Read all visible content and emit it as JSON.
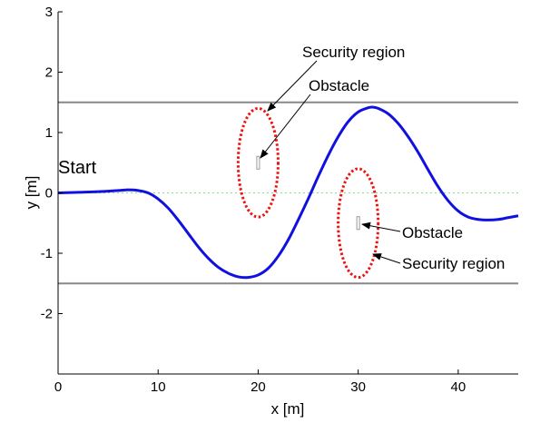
{
  "chart_data": {
    "type": "line",
    "xlabel": "x [m]",
    "ylabel": "y [m]",
    "xlim": [
      0,
      46
    ],
    "ylim": [
      -3,
      3
    ],
    "xticks": [
      0,
      10,
      20,
      30,
      40
    ],
    "yticks": [
      -2,
      -1,
      0,
      1,
      2,
      3
    ],
    "grid": false,
    "colors": {
      "trajectory": "#1010e0",
      "boundary": "#888888",
      "centerline": "#88dd88",
      "security_region": "#ee1111",
      "obstacle": "#999999"
    },
    "series": [
      {
        "x": [
          0,
          2,
          4,
          6,
          7,
          8,
          9,
          10,
          11,
          12,
          13,
          14,
          15,
          16,
          17,
          18,
          19,
          20,
          21,
          22,
          23,
          24,
          25,
          26,
          27,
          28,
          29,
          30,
          31,
          31.5,
          32,
          33,
          34,
          35,
          36,
          37,
          38,
          39,
          40,
          41,
          42,
          43,
          44,
          45,
          46
        ],
        "y": [
          0,
          0.01,
          0.02,
          0.04,
          0.05,
          0.04,
          0.0,
          -0.1,
          -0.25,
          -0.45,
          -0.67,
          -0.89,
          -1.08,
          -1.23,
          -1.33,
          -1.39,
          -1.4,
          -1.36,
          -1.25,
          -1.05,
          -0.78,
          -0.45,
          -0.1,
          0.27,
          0.62,
          0.93,
          1.18,
          1.34,
          1.41,
          1.42,
          1.4,
          1.31,
          1.15,
          0.93,
          0.67,
          0.38,
          0.1,
          -0.13,
          -0.3,
          -0.4,
          -0.44,
          -0.45,
          -0.44,
          -0.41,
          -0.38
        ]
      }
    ],
    "boundaries": [
      1.5,
      -1.5
    ],
    "centerline": 0,
    "security_regions": [
      {
        "cx": 20,
        "cy": 0.5,
        "rx": 2.0,
        "ry": 0.9
      },
      {
        "cx": 30,
        "cy": -0.5,
        "rx": 2.0,
        "ry": 0.9
      }
    ],
    "obstacles": [
      {
        "x": 20,
        "y": 0.5
      },
      {
        "x": 30,
        "y": -0.5
      }
    ],
    "annotations": {
      "start": "Start",
      "security_region_1": "Security region",
      "obstacle_1": "Obstacle",
      "obstacle_2": "Obstacle",
      "security_region_2": "Security region"
    }
  }
}
